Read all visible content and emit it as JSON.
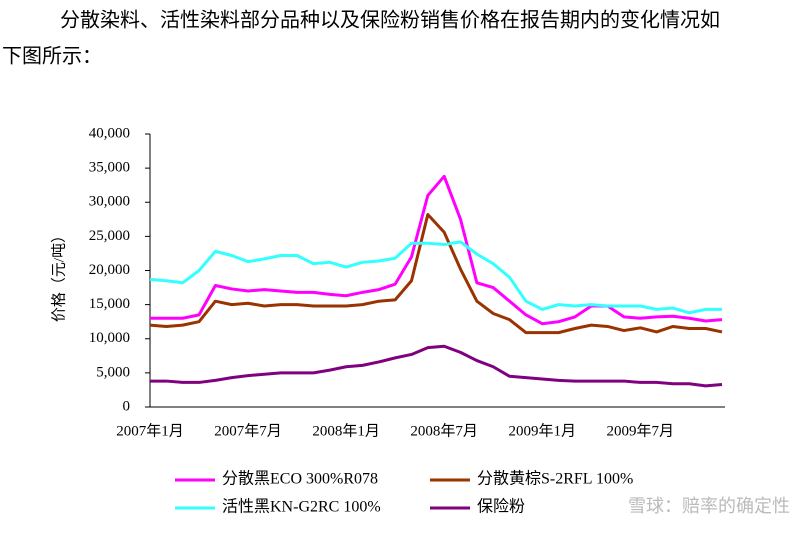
{
  "intro": [
    "分散染料、活性染料部分品种以及保险粉销售价格在报告期内的变化情况如",
    "下图所示："
  ],
  "watermark": "雪球：赔率的确定性",
  "chart_data": {
    "type": "line",
    "ylabel": "价格（元/吨）",
    "categories": [
      "2007年1月",
      null,
      null,
      null,
      null,
      null,
      "2007年7月",
      null,
      null,
      null,
      null,
      null,
      "2008年1月",
      null,
      null,
      null,
      null,
      null,
      "2008年7月",
      null,
      null,
      null,
      null,
      null,
      "2009年1月",
      null,
      null,
      null,
      null,
      null,
      "2009年7月",
      null,
      null,
      null,
      null,
      null
    ],
    "ylim": [
      0,
      40000
    ],
    "yticks": [
      0,
      {
        "value": 5000,
        "label": "5,000"
      },
      {
        "value": 10000,
        "label": "10,000"
      },
      {
        "value": 15000,
        "label": "15,000"
      },
      {
        "value": 20000,
        "label": "20,000"
      },
      {
        "value": 25000,
        "label": "25,000"
      },
      {
        "value": 30000,
        "label": "30,000"
      },
      {
        "value": 35000,
        "label": "35,000"
      },
      {
        "value": 40000,
        "label": "40,000"
      }
    ],
    "grid": false,
    "legend": "bottom",
    "series": [
      {
        "name": "分散黑ECO 300%R078",
        "color": "#ff00ff",
        "values": [
          13000,
          13000,
          13000,
          13500,
          17800,
          17300,
          17000,
          17200,
          17000,
          16800,
          16800,
          16500,
          16300,
          16800,
          17200,
          18000,
          22000,
          31000,
          33800,
          27500,
          18200,
          17500,
          15500,
          13500,
          12200,
          12500,
          13200,
          14800,
          14800,
          13200,
          13000,
          13200,
          13300,
          13000,
          12600,
          12800
        ]
      },
      {
        "name": "分散黄棕S-2RFL 100%",
        "color": "#993300",
        "values": [
          12000,
          11800,
          12000,
          12500,
          15500,
          15000,
          15200,
          14800,
          15000,
          15000,
          14800,
          14800,
          14800,
          15000,
          15500,
          15700,
          18500,
          28200,
          25600,
          20200,
          15500,
          13700,
          12800,
          10900,
          10900,
          10900,
          11500,
          12000,
          11800,
          11200,
          11600,
          11000,
          11800,
          11500,
          11500,
          11000
        ]
      },
      {
        "name": "活性黑KN-G2RC 100%",
        "color": "#33ffff",
        "values": [
          18700,
          18500,
          18200,
          20000,
          22800,
          22200,
          21300,
          21700,
          22200,
          22200,
          21000,
          21200,
          20500,
          21200,
          21400,
          21800,
          24000,
          24000,
          23800,
          24200,
          22400,
          21000,
          19000,
          15500,
          14300,
          15000,
          14800,
          15000,
          14800,
          14800,
          14800,
          14300,
          14500,
          13800,
          14300,
          14300
        ]
      },
      {
        "name": "保险粉",
        "color": "#800080",
        "values": [
          3800,
          3800,
          3600,
          3600,
          3900,
          4300,
          4600,
          4800,
          5000,
          5000,
          5000,
          5400,
          5900,
          6100,
          6600,
          7200,
          7700,
          8700,
          8900,
          8000,
          6800,
          5900,
          4500,
          4300,
          4100,
          3900,
          3800,
          3800,
          3800,
          3800,
          3600,
          3600,
          3400,
          3400,
          3100,
          3300
        ]
      }
    ]
  }
}
